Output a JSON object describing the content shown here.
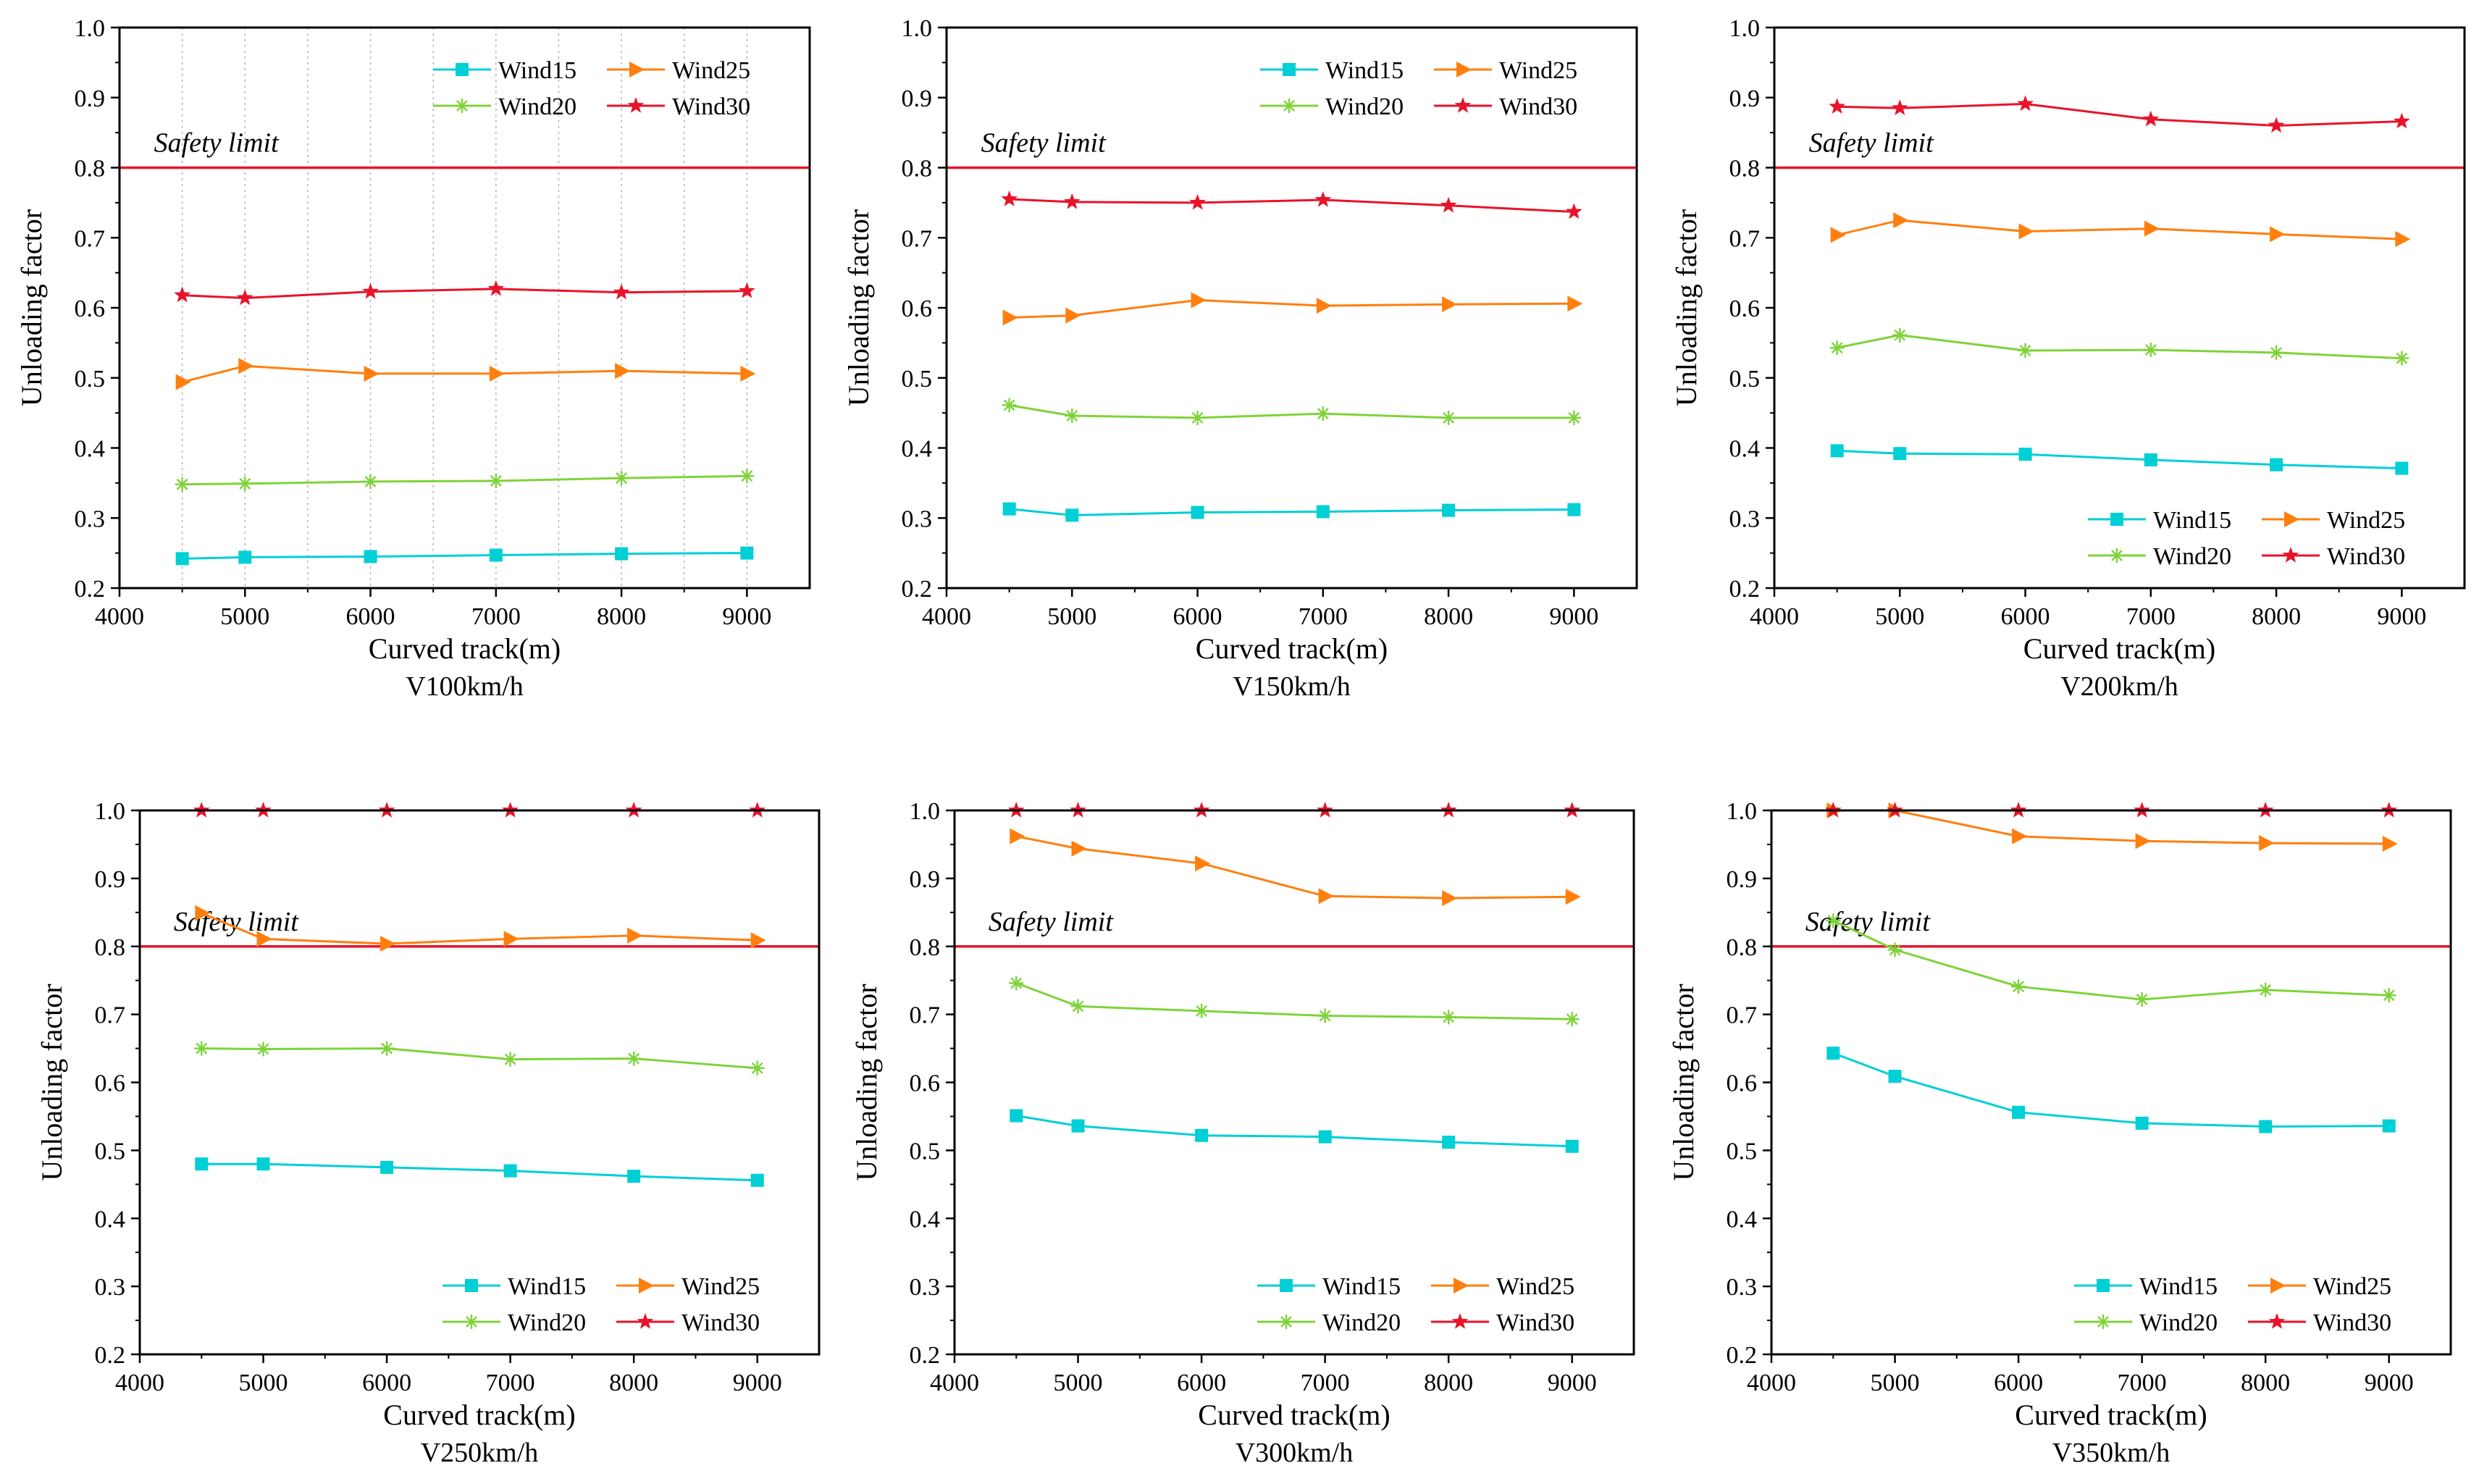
{
  "colors": {
    "Wind15": "#00cfd6",
    "Wind25": "#ff7f0e",
    "Wind20": "#7fd33a",
    "Wind30": "#e8132a",
    "safety_line": "#e8132a"
  },
  "chart_data": [
    {
      "type": "line",
      "title": "V100km/h",
      "xlabel": "Curved track(m)",
      "ylabel": "Unloading factor",
      "xlim": [
        4000,
        9500
      ],
      "ylim": [
        0.2,
        1.0
      ],
      "xticks": [
        4000,
        5000,
        6000,
        7000,
        8000,
        9000
      ],
      "yticks": [
        "0.2",
        "0.3",
        "0.4",
        "0.5",
        "0.6",
        "0.7",
        "0.8",
        "0.9",
        "1.0"
      ],
      "grid": "vertical-dotted",
      "safety_limit": {
        "value": 0.8,
        "label": "Safety limit"
      },
      "legend_position": "top-right",
      "x": [
        4500,
        5000,
        6000,
        7000,
        8000,
        9000
      ],
      "series": [
        {
          "name": "Wind15",
          "marker": "square",
          "values": [
            0.242,
            0.244,
            0.245,
            0.247,
            0.249,
            0.25
          ]
        },
        {
          "name": "Wind25",
          "marker": "triangle",
          "values": [
            0.494,
            0.517,
            0.506,
            0.506,
            0.51,
            0.506
          ]
        },
        {
          "name": "Wind20",
          "marker": "asterisk",
          "values": [
            0.348,
            0.349,
            0.352,
            0.353,
            0.357,
            0.36
          ]
        },
        {
          "name": "Wind30",
          "marker": "star",
          "values": [
            0.618,
            0.614,
            0.623,
            0.627,
            0.622,
            0.624
          ]
        }
      ]
    },
    {
      "type": "line",
      "title": "V150km/h",
      "xlabel": "Curved track(m)",
      "ylabel": "Unloading factor",
      "xlim": [
        4000,
        9500
      ],
      "ylim": [
        0.2,
        1.0
      ],
      "xticks": [
        4000,
        5000,
        6000,
        7000,
        8000,
        9000
      ],
      "yticks": [
        "0.2",
        "0.3",
        "0.4",
        "0.5",
        "0.6",
        "0.7",
        "0.8",
        "0.9",
        "1.0"
      ],
      "grid": "none",
      "safety_limit": {
        "value": 0.8,
        "label": "Safety limit"
      },
      "legend_position": "top-right",
      "x": [
        4500,
        5000,
        6000,
        7000,
        8000,
        9000
      ],
      "series": [
        {
          "name": "Wind15",
          "marker": "square",
          "values": [
            0.313,
            0.304,
            0.308,
            0.309,
            0.311,
            0.312
          ]
        },
        {
          "name": "Wind25",
          "marker": "triangle",
          "values": [
            0.586,
            0.589,
            0.611,
            0.603,
            0.605,
            0.606
          ]
        },
        {
          "name": "Wind20",
          "marker": "asterisk",
          "values": [
            0.461,
            0.446,
            0.443,
            0.449,
            0.443,
            0.443
          ]
        },
        {
          "name": "Wind30",
          "marker": "star",
          "values": [
            0.755,
            0.751,
            0.75,
            0.754,
            0.746,
            0.737
          ]
        }
      ]
    },
    {
      "type": "line",
      "title": "V200km/h",
      "xlabel": "Curved track(m)",
      "ylabel": "Unloading factor",
      "xlim": [
        4000,
        9500
      ],
      "ylim": [
        0.2,
        1.0
      ],
      "xticks": [
        4000,
        5000,
        6000,
        7000,
        8000,
        9000
      ],
      "yticks": [
        "0.2",
        "0.3",
        "0.4",
        "0.5",
        "0.6",
        "0.7",
        "0.8",
        "0.9",
        "1.0"
      ],
      "grid": "none",
      "safety_limit": {
        "value": 0.8,
        "label": "Safety limit"
      },
      "legend_position": "bottom-right",
      "x": [
        4500,
        5000,
        6000,
        7000,
        8000,
        9000
      ],
      "series": [
        {
          "name": "Wind15",
          "marker": "square",
          "values": [
            0.396,
            0.392,
            0.391,
            0.383,
            0.376,
            0.371
          ]
        },
        {
          "name": "Wind25",
          "marker": "triangle",
          "values": [
            0.704,
            0.725,
            0.709,
            0.713,
            0.705,
            0.698
          ]
        },
        {
          "name": "Wind20",
          "marker": "asterisk",
          "values": [
            0.543,
            0.561,
            0.539,
            0.54,
            0.536,
            0.528
          ]
        },
        {
          "name": "Wind30",
          "marker": "star",
          "values": [
            0.887,
            0.885,
            0.891,
            0.869,
            0.86,
            0.866
          ]
        }
      ]
    },
    {
      "type": "line",
      "title": "V250km/h",
      "xlabel": "Curved track(m)",
      "ylabel": "Unloading factor",
      "xlim": [
        4000,
        9500
      ],
      "ylim": [
        0.2,
        1.0
      ],
      "xticks": [
        4000,
        5000,
        6000,
        7000,
        8000,
        9000
      ],
      "yticks": [
        "0.2",
        "0.3",
        "0.4",
        "0.5",
        "0.6",
        "0.7",
        "0.8",
        "0.9",
        "1.0"
      ],
      "grid": "none",
      "safety_limit": {
        "value": 0.8,
        "label": "Safety limit"
      },
      "legend_position": "bottom-right",
      "x": [
        4500,
        5000,
        6000,
        7000,
        8000,
        9000
      ],
      "series": [
        {
          "name": "Wind15",
          "marker": "square",
          "values": [
            0.48,
            0.48,
            0.475,
            0.47,
            0.462,
            0.456
          ]
        },
        {
          "name": "Wind25",
          "marker": "triangle",
          "values": [
            0.849,
            0.811,
            0.804,
            0.811,
            0.816,
            0.809
          ]
        },
        {
          "name": "Wind20",
          "marker": "asterisk",
          "values": [
            0.65,
            0.649,
            0.65,
            0.634,
            0.635,
            0.621
          ]
        },
        {
          "name": "Wind30",
          "marker": "star",
          "values": [
            1.0,
            1.0,
            1.0,
            1.0,
            1.0,
            1.0
          ]
        }
      ]
    },
    {
      "type": "line",
      "title": "V300km/h",
      "xlabel": "Curved track(m)",
      "ylabel": "Unloading factor",
      "xlim": [
        4000,
        9500
      ],
      "ylim": [
        0.2,
        1.0
      ],
      "xticks": [
        4000,
        5000,
        6000,
        7000,
        8000,
        9000
      ],
      "yticks": [
        "0.2",
        "0.3",
        "0.4",
        "0.5",
        "0.6",
        "0.7",
        "0.8",
        "0.9",
        "1.0"
      ],
      "grid": "none",
      "safety_limit": {
        "value": 0.8,
        "label": "Safety limit"
      },
      "legend_position": "bottom-right",
      "x": [
        4500,
        5000,
        6000,
        7000,
        8000,
        9000
      ],
      "series": [
        {
          "name": "Wind15",
          "marker": "square",
          "values": [
            0.551,
            0.536,
            0.522,
            0.52,
            0.512,
            0.506
          ]
        },
        {
          "name": "Wind25",
          "marker": "triangle",
          "values": [
            0.962,
            0.944,
            0.922,
            0.874,
            0.871,
            0.873
          ]
        },
        {
          "name": "Wind20",
          "marker": "asterisk",
          "values": [
            0.746,
            0.712,
            0.705,
            0.698,
            0.696,
            0.693
          ]
        },
        {
          "name": "Wind30",
          "marker": "star",
          "values": [
            1.0,
            1.0,
            1.0,
            1.0,
            1.0,
            1.0
          ]
        }
      ]
    },
    {
      "type": "line",
      "title": "V350km/h",
      "xlabel": "Curved track(m)",
      "ylabel": "Unloading factor",
      "xlim": [
        4000,
        9500
      ],
      "ylim": [
        0.2,
        1.0
      ],
      "xticks": [
        4000,
        5000,
        6000,
        7000,
        8000,
        9000
      ],
      "yticks": [
        "0.2",
        "0.3",
        "0.4",
        "0.5",
        "0.6",
        "0.7",
        "0.8",
        "0.9",
        "1.0"
      ],
      "grid": "none",
      "safety_limit": {
        "value": 0.8,
        "label": "Safety limit"
      },
      "legend_position": "bottom-right",
      "x": [
        4500,
        5000,
        6000,
        7000,
        8000,
        9000
      ],
      "series": [
        {
          "name": "Wind15",
          "marker": "square",
          "values": [
            0.643,
            0.609,
            0.556,
            0.54,
            0.535,
            0.536
          ]
        },
        {
          "name": "Wind25",
          "marker": "triangle",
          "values": [
            1.0,
            1.0,
            0.962,
            0.955,
            0.952,
            0.951
          ]
        },
        {
          "name": "Wind20",
          "marker": "asterisk",
          "values": [
            0.838,
            0.795,
            0.741,
            0.722,
            0.736,
            0.728
          ]
        },
        {
          "name": "Wind30",
          "marker": "star",
          "values": [
            1.0,
            1.0,
            1.0,
            1.0,
            1.0,
            1.0
          ]
        }
      ]
    }
  ]
}
